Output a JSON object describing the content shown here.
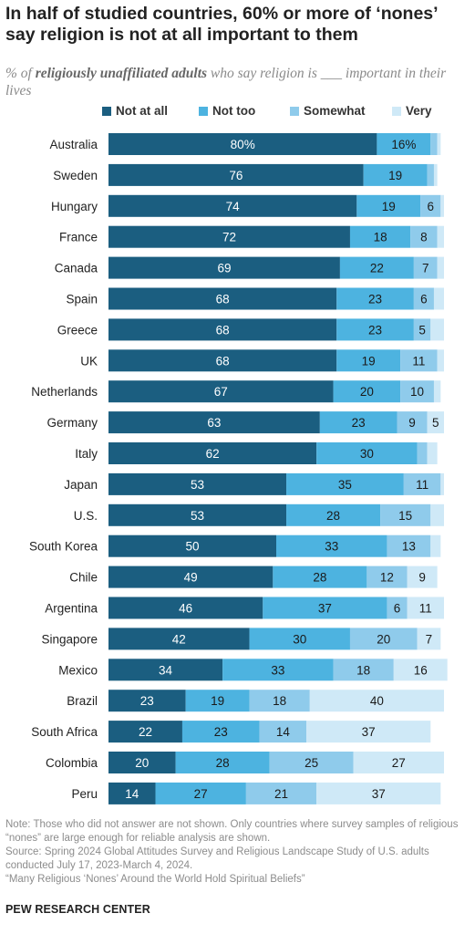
{
  "title": "In half of studied countries, 60% or more of ‘nones’ say religion is not at all important to them",
  "subtitle": {
    "prefix": "% of ",
    "emphasis": "religiously unaffiliated adults",
    "suffix": " who say religion is ___ important in their lives"
  },
  "legend": [
    "Not at all",
    "Not too",
    "Somewhat",
    "Very"
  ],
  "colors": [
    "#1b5e80",
    "#4db3e0",
    "#8fcbeb",
    "#cfe9f7"
  ],
  "chart_data": {
    "type": "bar",
    "orientation": "horizontal",
    "stacked": true,
    "categories": [
      "Australia",
      "Sweden",
      "Hungary",
      "France",
      "Canada",
      "Spain",
      "Greece",
      "UK",
      "Netherlands",
      "Germany",
      "Italy",
      "Japan",
      "U.S.",
      "South Korea",
      "Chile",
      "Argentina",
      "Singapore",
      "Mexico",
      "Brazil",
      "South Africa",
      "Colombia",
      "Peru"
    ],
    "series": [
      {
        "name": "Not at all",
        "values": [
          80,
          76,
          74,
          72,
          69,
          68,
          68,
          68,
          67,
          63,
          62,
          53,
          53,
          50,
          49,
          46,
          42,
          34,
          23,
          22,
          20,
          14
        ]
      },
      {
        "name": "Not too",
        "values": [
          16,
          19,
          19,
          18,
          22,
          23,
          23,
          19,
          20,
          23,
          30,
          35,
          28,
          33,
          28,
          37,
          30,
          33,
          19,
          23,
          28,
          27
        ]
      },
      {
        "name": "Somewhat",
        "values": [
          2,
          2,
          6,
          8,
          7,
          6,
          5,
          11,
          10,
          9,
          3,
          11,
          15,
          13,
          12,
          6,
          20,
          18,
          18,
          14,
          25,
          21
        ]
      },
      {
        "name": "Very",
        "values": [
          1,
          1,
          1,
          2,
          2,
          3,
          4,
          2,
          2,
          5,
          3,
          1,
          4,
          3,
          9,
          11,
          7,
          16,
          40,
          37,
          27,
          37
        ]
      }
    ],
    "labels": [
      [
        "80%",
        "16%",
        "",
        ""
      ],
      [
        "76",
        "19",
        "",
        ""
      ],
      [
        "74",
        "19",
        "6",
        ""
      ],
      [
        "72",
        "18",
        "8",
        ""
      ],
      [
        "69",
        "22",
        "7",
        ""
      ],
      [
        "68",
        "23",
        "6",
        ""
      ],
      [
        "68",
        "23",
        "5",
        ""
      ],
      [
        "68",
        "19",
        "11",
        ""
      ],
      [
        "67",
        "20",
        "10",
        ""
      ],
      [
        "63",
        "23",
        "9",
        "5"
      ],
      [
        "62",
        "30",
        "",
        ""
      ],
      [
        "53",
        "35",
        "11",
        ""
      ],
      [
        "53",
        "28",
        "15",
        ""
      ],
      [
        "50",
        "33",
        "13",
        ""
      ],
      [
        "49",
        "28",
        "12",
        "9"
      ],
      [
        "46",
        "37",
        "6",
        "11"
      ],
      [
        "42",
        "30",
        "20",
        "7"
      ],
      [
        "34",
        "33",
        "18",
        "16"
      ],
      [
        "23",
        "19",
        "18",
        "40"
      ],
      [
        "22",
        "23",
        "14",
        "37"
      ],
      [
        "20",
        "28",
        "25",
        "27"
      ],
      [
        "14",
        "27",
        "21",
        "37"
      ]
    ],
    "xlim": [
      0,
      100
    ],
    "legend_position": "top"
  },
  "notes": [
    "Note: Those who did not answer are not shown. Only countries where survey samples of religious “nones” are large enough for reliable analysis are shown.",
    "Source: Spring 2024 Global Attitudes Survey and Religious Landscape Study of U.S. adults conducted July 17, 2023-March 4, 2024.",
    "“Many Religious ‘Nones’ Around the World Hold Spiritual Beliefs”"
  ],
  "brand": "PEW RESEARCH CENTER"
}
